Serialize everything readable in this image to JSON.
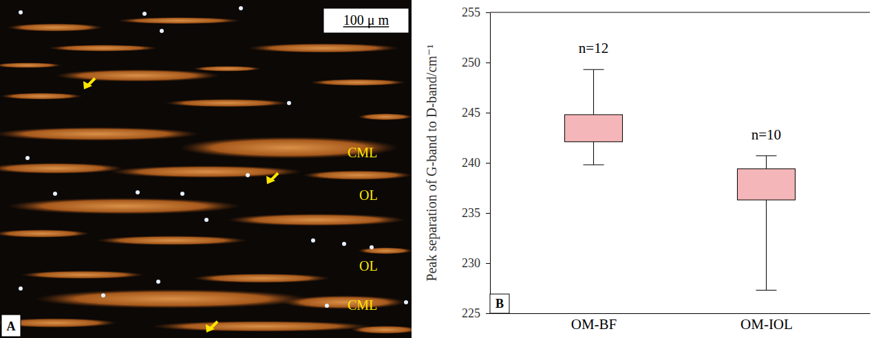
{
  "panel_a": {
    "letter": "A",
    "scale_bar": "100 μ m",
    "labels": [
      "CML",
      "OL",
      "OL",
      "CML"
    ]
  },
  "chart_data": {
    "type": "box",
    "panel_label": "B",
    "ylabel": "Peak separation of G-band to D-band/cm⁻¹",
    "categories": [
      "OM-BF",
      "OM-IOL"
    ],
    "min": [
      239.8,
      227.3
    ],
    "q1": [
      242.1,
      236.3
    ],
    "q3": [
      244.8,
      239.4
    ],
    "max": [
      249.3,
      240.7
    ],
    "count_labels": [
      "n=12",
      "n=10"
    ],
    "color": "#f4b6b8",
    "ylim": [
      225,
      255
    ],
    "yticks": [
      225,
      230,
      235,
      240,
      245,
      250,
      255
    ]
  }
}
